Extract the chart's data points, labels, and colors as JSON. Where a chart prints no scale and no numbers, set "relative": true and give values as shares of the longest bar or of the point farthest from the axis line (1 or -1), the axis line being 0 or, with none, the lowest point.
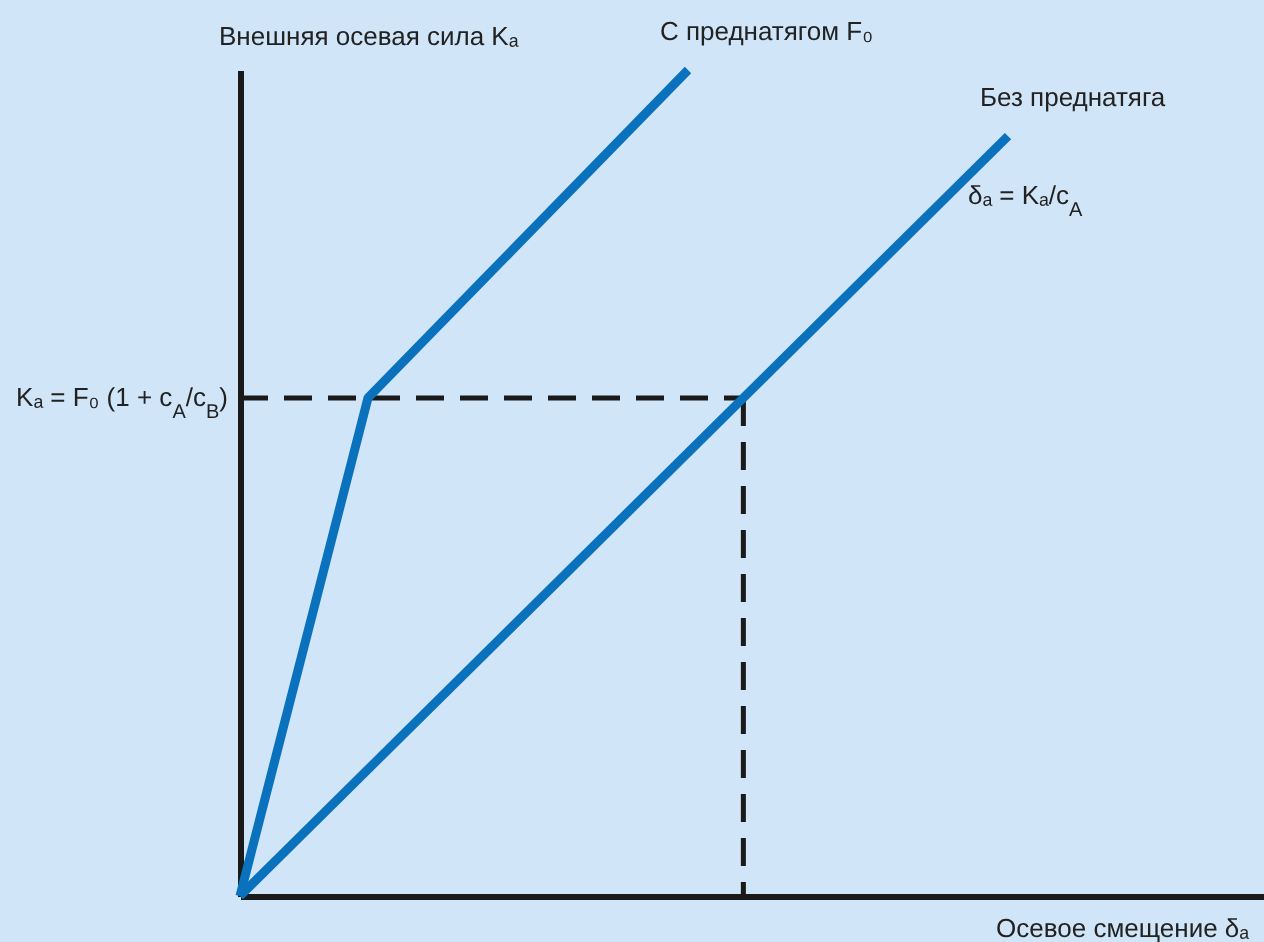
{
  "chart_data": {
    "type": "line",
    "relative": true,
    "xlabel": "Осевое смещение δₐ",
    "ylabel": "Внешняя осевая сила Kₐ",
    "categories": [
      null,
      null,
      null,
      null,
      null,
      null,
      null,
      null,
      null,
      null,
      null,
      null,
      null,
      null,
      null,
      null,
      null
    ],
    "series": [
      {
        "name": "С преднатягом F₀",
        "color": "#0a72bc",
        "values": [
          0,
          null,
          0.603,
          null,
          null,
          null,
          null,
          1,
          null,
          null,
          null,
          null,
          null,
          null,
          null,
          null,
          null
        ]
      },
      {
        "name": "Без преднатяга",
        "color": "#0a72bc",
        "values": [
          0,
          null,
          null,
          null,
          null,
          null,
          null,
          null,
          null,
          null,
          null,
          null,
          0.92,
          null,
          null,
          null,
          null
        ]
      }
    ],
    "ref_lines": [
      {
        "axis": "y",
        "value": 0.603,
        "label": "Kₐ = F₀ (1 + c$_{A}$/c$_{B}$)",
        "line_style": "dashed",
        "color": "#1a1a1a"
      }
    ],
    "annotations": [
      "δₐ = Kₐ/c$_{A}$"
    ]
  }
}
